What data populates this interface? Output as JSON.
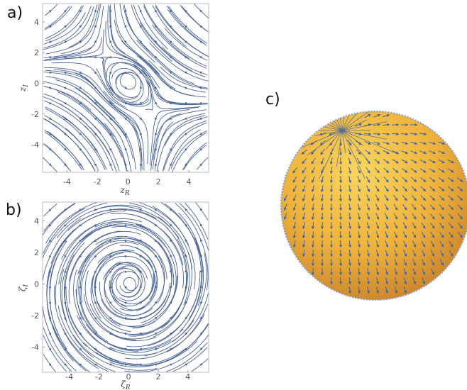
{
  "panels": {
    "a": {
      "label": "a)",
      "xlabel": "z",
      "xlabel_sub": "R",
      "ylabel": "z",
      "ylabel_sub": "I",
      "xticks": [
        "-4",
        "-2",
        "0",
        "2",
        "4"
      ],
      "yticks": [
        "4",
        "2",
        "0",
        "-2",
        "-4"
      ]
    },
    "b": {
      "label": "b)",
      "xlabel": "ζ",
      "xlabel_sub": "R",
      "ylabel": "ζ",
      "ylabel_sub": "I",
      "xticks": [
        "-4",
        "-2",
        "0",
        "2",
        "4"
      ],
      "yticks": [
        "4",
        "2",
        "0",
        "-2",
        "-4"
      ]
    },
    "c": {
      "label": "c)"
    }
  },
  "colors": {
    "stream": "#4a6496",
    "sphere_light": "#f8d25a",
    "sphere_mid": "#eeb23c",
    "sphere_dark": "#c9832a"
  },
  "chart_data": [
    {
      "type": "streamplot",
      "panel": "a",
      "xlabel": "z_R",
      "ylabel": "z_I",
      "xlim": [
        -5.6,
        5.3
      ],
      "ylim": [
        -5.8,
        5.2
      ],
      "grid": false,
      "flow": "spiral vortex at origin; flow converges toward origin along real axis and diverges along imaginary axis (hyperbolic far field)"
    },
    {
      "type": "streamplot",
      "panel": "b",
      "xlabel": "ζ_R",
      "ylabel": "ζ_I",
      "xlim": [
        -5.8,
        5.4
      ],
      "ylim": [
        -5.6,
        5.2
      ],
      "grid": false,
      "flow": "counter-clockwise spiral centered at origin"
    },
    {
      "type": "sphere-vector-field",
      "panel": "c",
      "flow": "vector field on a sphere, streamlines radiating from a pole near the upper-left"
    }
  ]
}
